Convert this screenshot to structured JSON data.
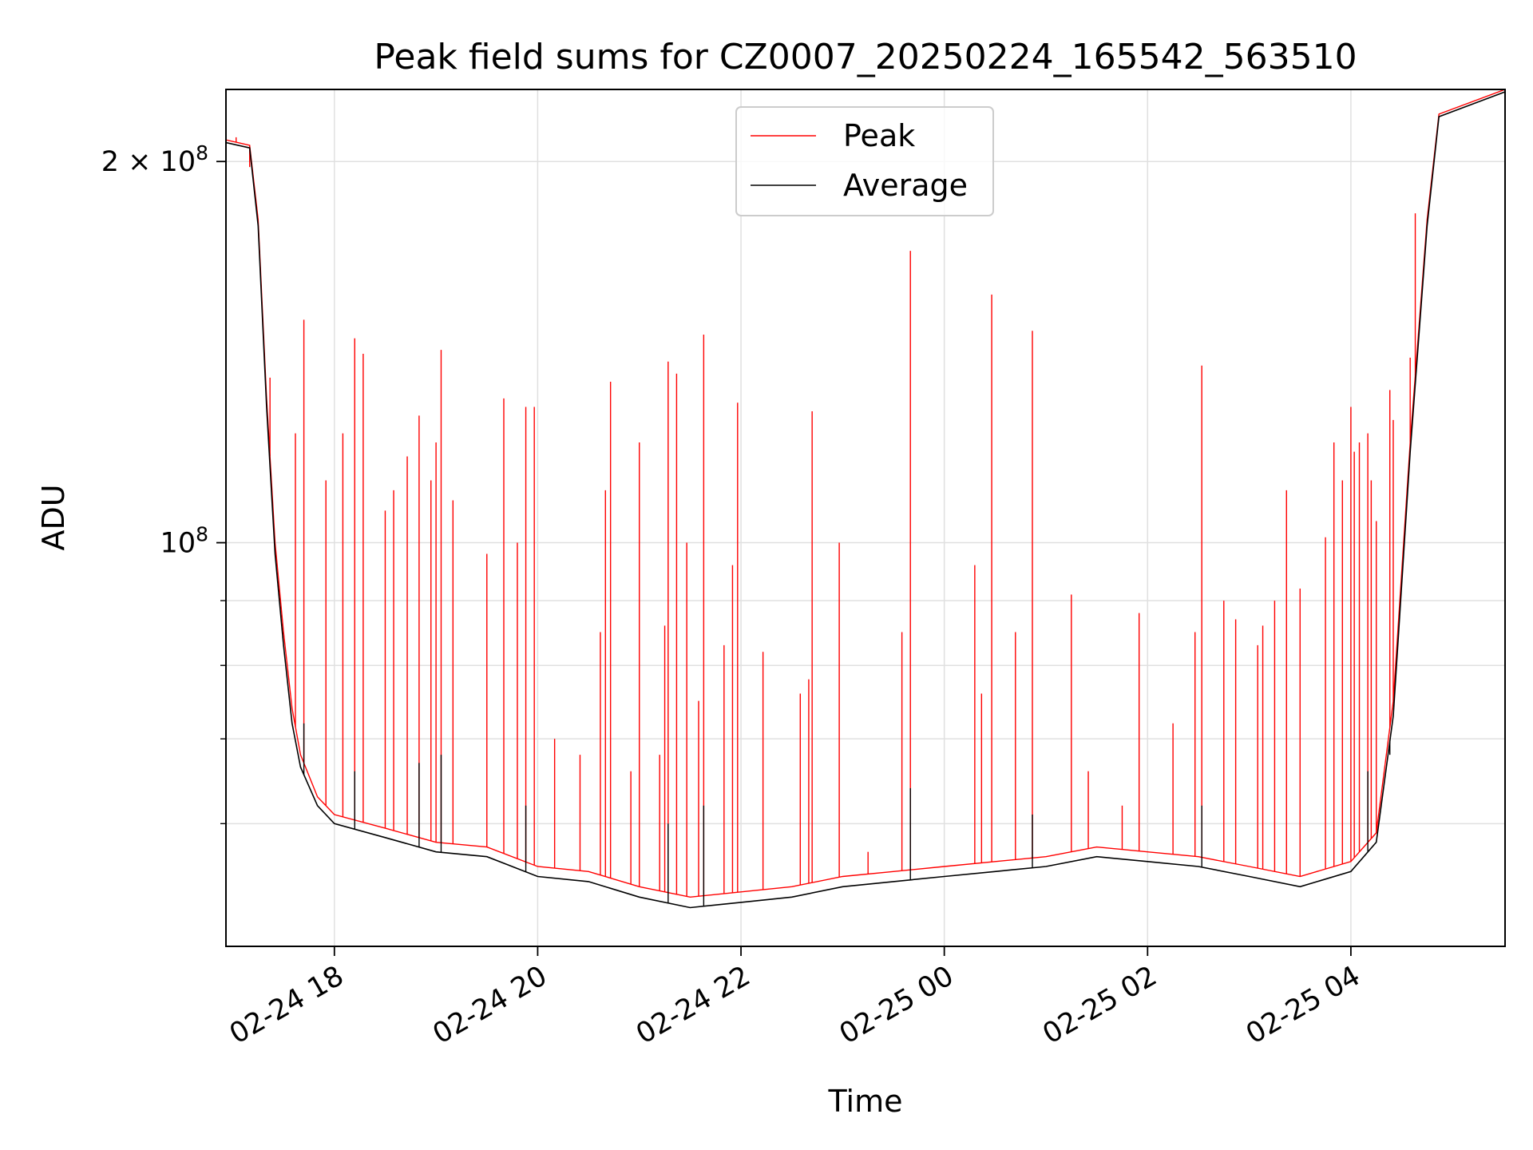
{
  "chart_data": {
    "type": "line",
    "title": "Peak field sums for CZ0007_20250224_165542_563510",
    "xlabel": "Time",
    "ylabel": "ADU",
    "y_scale": "log",
    "ylim": [
      48000000,
      228000000
    ],
    "xlim": [
      "2025-02-24 16:56",
      "2025-02-25 05:31"
    ],
    "grid": true,
    "legend_position": "upper center",
    "x_ticks": [
      {
        "t": "2025-02-24 18:00",
        "label": "02-24 18"
      },
      {
        "t": "2025-02-24 20:00",
        "label": "02-24 20"
      },
      {
        "t": "2025-02-24 22:00",
        "label": "02-24 22"
      },
      {
        "t": "2025-02-25 00:00",
        "label": "02-25 00"
      },
      {
        "t": "2025-02-25 02:00",
        "label": "02-25 02"
      },
      {
        "t": "2025-02-25 04:00",
        "label": "02-25 04"
      }
    ],
    "y_major_ticks": [
      {
        "value": 100000000,
        "mantissa": "",
        "exponent": "8"
      },
      {
        "value": 200000000,
        "mantissa": "2",
        "exponent": "8"
      }
    ],
    "y_minor_ticks": [
      60000000,
      70000000,
      80000000,
      90000000
    ],
    "series": [
      {
        "name": "Peak",
        "color": "#ff0000",
        "baseline": [
          [
            "2025-02-24 16:56",
            208000000
          ],
          [
            "2025-02-24 17:10",
            206000000
          ],
          [
            "2025-02-24 17:15",
            180000000
          ],
          [
            "2025-02-24 17:20",
            130000000
          ],
          [
            "2025-02-24 17:25",
            100000000
          ],
          [
            "2025-02-24 17:30",
            85000000
          ],
          [
            "2025-02-24 17:35",
            74000000
          ],
          [
            "2025-02-24 17:40",
            68000000
          ],
          [
            "2025-02-24 17:50",
            63000000
          ],
          [
            "2025-02-24 18:00",
            61000000
          ],
          [
            "2025-02-24 18:30",
            59500000
          ],
          [
            "2025-02-24 19:00",
            58000000
          ],
          [
            "2025-02-24 19:30",
            57500000
          ],
          [
            "2025-02-24 20:00",
            55500000
          ],
          [
            "2025-02-24 20:30",
            55000000
          ],
          [
            "2025-02-24 21:00",
            53500000
          ],
          [
            "2025-02-24 21:30",
            52500000
          ],
          [
            "2025-02-24 22:00",
            53000000
          ],
          [
            "2025-02-24 22:30",
            53500000
          ],
          [
            "2025-02-24 23:00",
            54500000
          ],
          [
            "2025-02-24 23:30",
            55000000
          ],
          [
            "2025-02-25 00:00",
            55500000
          ],
          [
            "2025-02-25 00:30",
            56000000
          ],
          [
            "2025-02-25 01:00",
            56500000
          ],
          [
            "2025-02-25 01:30",
            57500000
          ],
          [
            "2025-02-25 02:00",
            57000000
          ],
          [
            "2025-02-25 02:30",
            56500000
          ],
          [
            "2025-02-25 03:00",
            55500000
          ],
          [
            "2025-02-25 03:30",
            54500000
          ],
          [
            "2025-02-25 04:00",
            56000000
          ],
          [
            "2025-02-25 04:15",
            59000000
          ],
          [
            "2025-02-25 04:25",
            75000000
          ],
          [
            "2025-02-25 04:35",
            120000000
          ],
          [
            "2025-02-25 04:45",
            180000000
          ],
          [
            "2025-02-25 04:52",
            218000000
          ],
          [
            "2025-02-25 05:31",
            228000000
          ]
        ],
        "spikes": [
          [
            "2025-02-24 17:02",
            209000000
          ],
          [
            "2025-02-24 17:10",
            198000000
          ],
          [
            "2025-02-24 17:22",
            135000000
          ],
          [
            "2025-02-24 17:37",
            122000000
          ],
          [
            "2025-02-24 17:42",
            150000000
          ],
          [
            "2025-02-24 17:55",
            112000000
          ],
          [
            "2025-02-24 18:05",
            122000000
          ],
          [
            "2025-02-24 18:12",
            145000000
          ],
          [
            "2025-02-24 18:17",
            141000000
          ],
          [
            "2025-02-24 18:30",
            106000000
          ],
          [
            "2025-02-24 18:35",
            110000000
          ],
          [
            "2025-02-24 18:43",
            117000000
          ],
          [
            "2025-02-24 18:50",
            126000000
          ],
          [
            "2025-02-24 18:57",
            112000000
          ],
          [
            "2025-02-24 19:00",
            120000000
          ],
          [
            "2025-02-24 19:03",
            142000000
          ],
          [
            "2025-02-24 19:10",
            108000000
          ],
          [
            "2025-02-24 19:30",
            98000000
          ],
          [
            "2025-02-24 19:40",
            130000000
          ],
          [
            "2025-02-24 19:48",
            100000000
          ],
          [
            "2025-02-24 19:53",
            128000000
          ],
          [
            "2025-02-24 19:58",
            128000000
          ],
          [
            "2025-02-24 20:10",
            70000000
          ],
          [
            "2025-02-24 20:25",
            68000000
          ],
          [
            "2025-02-24 20:37",
            85000000
          ],
          [
            "2025-02-24 20:40",
            110000000
          ],
          [
            "2025-02-24 20:43",
            134000000
          ],
          [
            "2025-02-24 20:55",
            66000000
          ],
          [
            "2025-02-24 21:00",
            120000000
          ],
          [
            "2025-02-24 21:12",
            68000000
          ],
          [
            "2025-02-24 21:15",
            86000000
          ],
          [
            "2025-02-24 21:17",
            139000000
          ],
          [
            "2025-02-24 21:22",
            136000000
          ],
          [
            "2025-02-24 21:28",
            100000000
          ],
          [
            "2025-02-24 21:35",
            75000000
          ],
          [
            "2025-02-24 21:38",
            146000000
          ],
          [
            "2025-02-24 21:50",
            83000000
          ],
          [
            "2025-02-24 21:55",
            96000000
          ],
          [
            "2025-02-24 21:58",
            129000000
          ],
          [
            "2025-02-24 22:13",
            82000000
          ],
          [
            "2025-02-24 22:35",
            76000000
          ],
          [
            "2025-02-24 22:40",
            78000000
          ],
          [
            "2025-02-24 22:42",
            127000000
          ],
          [
            "2025-02-24 22:58",
            100000000
          ],
          [
            "2025-02-24 23:15",
            57000000
          ],
          [
            "2025-02-24 23:35",
            85000000
          ],
          [
            "2025-02-24 23:40",
            170000000
          ],
          [
            "2025-02-25 00:18",
            96000000
          ],
          [
            "2025-02-25 00:22",
            76000000
          ],
          [
            "2025-02-25 00:28",
            157000000
          ],
          [
            "2025-02-25 00:42",
            85000000
          ],
          [
            "2025-02-25 00:52",
            147000000
          ],
          [
            "2025-02-25 01:15",
            91000000
          ],
          [
            "2025-02-25 01:25",
            66000000
          ],
          [
            "2025-02-25 01:45",
            62000000
          ],
          [
            "2025-02-25 01:55",
            88000000
          ],
          [
            "2025-02-25 02:15",
            72000000
          ],
          [
            "2025-02-25 02:28",
            85000000
          ],
          [
            "2025-02-25 02:32",
            138000000
          ],
          [
            "2025-02-25 02:45",
            90000000
          ],
          [
            "2025-02-25 02:52",
            87000000
          ],
          [
            "2025-02-25 03:05",
            83000000
          ],
          [
            "2025-02-25 03:08",
            86000000
          ],
          [
            "2025-02-25 03:15",
            90000000
          ],
          [
            "2025-02-25 03:22",
            110000000
          ],
          [
            "2025-02-25 03:30",
            92000000
          ],
          [
            "2025-02-25 03:45",
            101000000
          ],
          [
            "2025-02-25 03:50",
            120000000
          ],
          [
            "2025-02-25 03:55",
            112000000
          ],
          [
            "2025-02-25 04:00",
            128000000
          ],
          [
            "2025-02-25 04:02",
            118000000
          ],
          [
            "2025-02-25 04:05",
            120000000
          ],
          [
            "2025-02-25 04:10",
            122000000
          ],
          [
            "2025-02-25 04:12",
            112000000
          ],
          [
            "2025-02-25 04:15",
            104000000
          ],
          [
            "2025-02-25 04:23",
            132000000
          ],
          [
            "2025-02-25 04:25",
            125000000
          ],
          [
            "2025-02-25 04:35",
            140000000
          ],
          [
            "2025-02-25 04:38",
            182000000
          ]
        ]
      },
      {
        "name": "Average",
        "color": "#000000",
        "baseline": [
          [
            "2025-02-24 16:56",
            207000000
          ],
          [
            "2025-02-24 17:10",
            205000000
          ],
          [
            "2025-02-24 17:15",
            178000000
          ],
          [
            "2025-02-24 17:20",
            128000000
          ],
          [
            "2025-02-24 17:25",
            98000000
          ],
          [
            "2025-02-24 17:30",
            83000000
          ],
          [
            "2025-02-24 17:35",
            72000000
          ],
          [
            "2025-02-24 17:40",
            66500000
          ],
          [
            "2025-02-24 17:50",
            62000000
          ],
          [
            "2025-02-24 18:00",
            60000000
          ],
          [
            "2025-02-24 18:30",
            58500000
          ],
          [
            "2025-02-24 19:00",
            57000000
          ],
          [
            "2025-02-24 19:30",
            56500000
          ],
          [
            "2025-02-24 20:00",
            54500000
          ],
          [
            "2025-02-24 20:30",
            54000000
          ],
          [
            "2025-02-24 21:00",
            52500000
          ],
          [
            "2025-02-24 21:30",
            51500000
          ],
          [
            "2025-02-24 22:00",
            52000000
          ],
          [
            "2025-02-24 22:30",
            52500000
          ],
          [
            "2025-02-24 23:00",
            53500000
          ],
          [
            "2025-02-24 23:30",
            54000000
          ],
          [
            "2025-02-25 00:00",
            54500000
          ],
          [
            "2025-02-25 00:30",
            55000000
          ],
          [
            "2025-02-25 01:00",
            55500000
          ],
          [
            "2025-02-25 01:30",
            56500000
          ],
          [
            "2025-02-25 02:00",
            56000000
          ],
          [
            "2025-02-25 02:30",
            55500000
          ],
          [
            "2025-02-25 03:00",
            54500000
          ],
          [
            "2025-02-25 03:30",
            53500000
          ],
          [
            "2025-02-25 04:00",
            55000000
          ],
          [
            "2025-02-25 04:15",
            58000000
          ],
          [
            "2025-02-25 04:25",
            73000000
          ],
          [
            "2025-02-25 04:35",
            118000000
          ],
          [
            "2025-02-25 04:45",
            178000000
          ],
          [
            "2025-02-25 04:52",
            217000000
          ],
          [
            "2025-02-25 05:31",
            227000000
          ]
        ],
        "spikes": [
          [
            "2025-02-24 17:42",
            72000000
          ],
          [
            "2025-02-24 18:12",
            66000000
          ],
          [
            "2025-02-24 18:50",
            67000000
          ],
          [
            "2025-02-24 19:03",
            68000000
          ],
          [
            "2025-02-24 19:53",
            62000000
          ],
          [
            "2025-02-24 21:17",
            60000000
          ],
          [
            "2025-02-24 21:38",
            62000000
          ],
          [
            "2025-02-24 23:40",
            64000000
          ],
          [
            "2025-02-25 00:52",
            61000000
          ],
          [
            "2025-02-25 02:32",
            62000000
          ],
          [
            "2025-02-25 04:10",
            66000000
          ],
          [
            "2025-02-25 04:23",
            68000000
          ]
        ]
      }
    ]
  }
}
